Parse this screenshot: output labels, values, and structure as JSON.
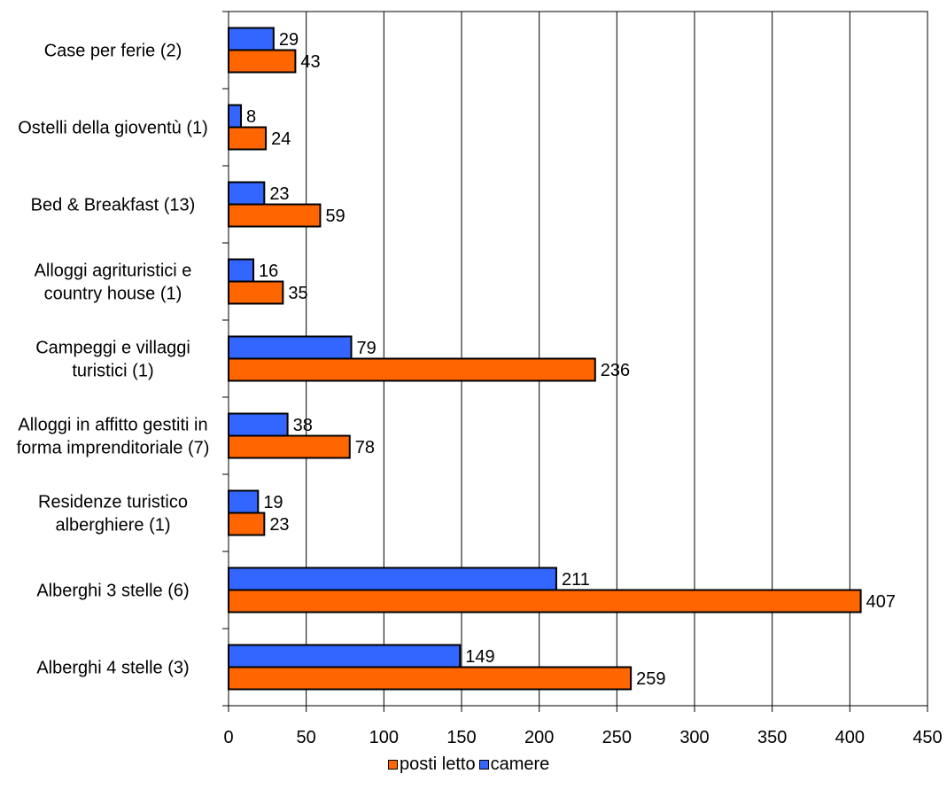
{
  "chart_data": {
    "type": "bar",
    "orientation": "horizontal",
    "categories": [
      "Alberghi 4 stelle (3)",
      "Alberghi 3 stelle (6)",
      "Residenze turistico alberghiere (1)",
      "Alloggi in affitto gestiti in forma imprenditoriale (7)",
      "Campeggi e villaggi turistici (1)",
      "Alloggi agrituristici e country house (1)",
      "Bed & Breakfast (13)",
      "Ostelli della gioventù (1)",
      "Case per ferie (2)"
    ],
    "category_label_lines": [
      [
        "Alberghi 4 stelle (3)"
      ],
      [
        "Alberghi 3 stelle (6)"
      ],
      [
        "Residenze turistico",
        "alberghiere (1)"
      ],
      [
        "Alloggi in affitto gestiti in",
        "forma imprenditoriale (7)"
      ],
      [
        "Campeggi e villaggi",
        "turistici (1)"
      ],
      [
        "Alloggi agrituristici e",
        "country house (1)"
      ],
      [
        "Bed & Breakfast (13)"
      ],
      [
        "Ostelli della gioventù (1)"
      ],
      [
        "Case per ferie (2)"
      ]
    ],
    "series": [
      {
        "name": "posti letto",
        "color": "#ff6600",
        "values": [
          259,
          407,
          23,
          78,
          236,
          35,
          59,
          24,
          43
        ]
      },
      {
        "name": "camere",
        "color": "#3366ff",
        "values": [
          149,
          211,
          19,
          38,
          79,
          16,
          23,
          8,
          29
        ]
      }
    ],
    "xlim": [
      0,
      450
    ],
    "x_ticks": [
      0,
      50,
      100,
      150,
      200,
      250,
      300,
      350,
      400,
      450
    ],
    "title": "",
    "xlabel": "",
    "ylabel": "",
    "grid": "vertical",
    "legend_position": "bottom",
    "data_labels": true
  }
}
